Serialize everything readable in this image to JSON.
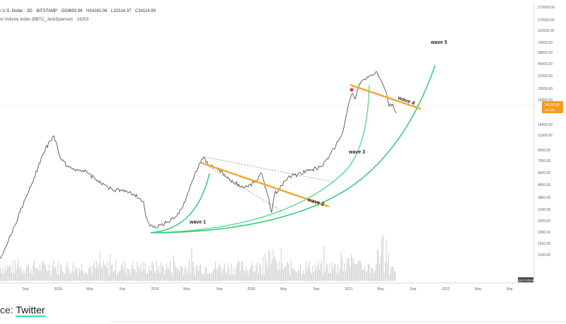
{
  "header": {
    "symbol": "/ U.S. Dollar",
    "interval": "3D",
    "exchange": "BITSTAMP",
    "ohlc": [
      "O33693.99",
      "H34242.06",
      "L32314.37",
      "C34114.99"
    ],
    "indicator": "ot Volume Index (BBTC_JackSparrow)",
    "indicator_value": "14203"
  },
  "source": {
    "prefix": "ce:",
    "link_text": "Twitter"
  },
  "chart_data": {
    "type": "line",
    "title": "",
    "scale": "log",
    "price_axis_labels": [
      "270000.00",
      "170000.00",
      "110000.00",
      "74000.00",
      "58000.00",
      "45000.00",
      "37000.00",
      "23000.00",
      "19000.00",
      "14000.00",
      "11000.00",
      "9000.00",
      "7500.00",
      "6000.00",
      "4800.00",
      "3800.00",
      "3100.00",
      "2500.00",
      "2000.00",
      "1600.00",
      "1300.00"
    ],
    "time_axis_labels": [
      "Sep",
      "2018",
      "May",
      "Sep",
      "2019",
      "May",
      "Sep",
      "2020",
      "May",
      "Sep",
      "2021",
      "May",
      "Sep",
      "2022",
      "May",
      "Sep"
    ],
    "last_price_label": "34114.99",
    "last_price_sub": "1d 12h",
    "volume_label": "Spot volume",
    "annotations": [
      "wave 1",
      "wave 2",
      "wave 3",
      "wave 4",
      "wave 5"
    ],
    "colors": {
      "price": "#555555",
      "arcs": "#33cc77",
      "trendlines": "#f0a830",
      "volume": "#cfcfcf",
      "marker": "#e83a3a",
      "last_price": "#f39c22"
    }
  }
}
